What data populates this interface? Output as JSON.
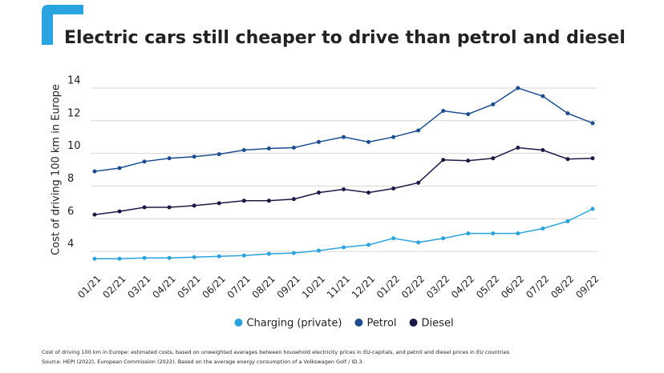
{
  "chart_data": {
    "type": "line",
    "title": "Electric cars still cheaper to drive than petrol and diesel",
    "y_label": "Cost of driving 100 km in Europe",
    "categories": [
      "01/21",
      "02/21",
      "03/21",
      "04/21",
      "05/21",
      "06/21",
      "07/21",
      "08/21",
      "09/21",
      "10/21",
      "11/21",
      "12/21",
      "01/22",
      "02/22",
      "03/22",
      "04/22",
      "05/22",
      "06/22",
      "07/22",
      "08/22",
      "09/22"
    ],
    "series": [
      {
        "name": "Charging (private)",
        "color": "#29a3dd",
        "values": [
          3.55,
          3.55,
          3.6,
          3.6,
          3.65,
          3.7,
          3.75,
          3.85,
          3.9,
          4.05,
          4.25,
          4.4,
          4.8,
          4.55,
          4.8,
          5.1,
          5.1,
          5.1,
          5.4,
          5.85,
          6.6
        ]
      },
      {
        "name": "Petrol",
        "color": "#1a4e91",
        "values": [
          8.9,
          9.1,
          9.5,
          9.7,
          9.8,
          9.95,
          10.2,
          10.3,
          10.35,
          10.7,
          11.0,
          10.7,
          11.0,
          11.4,
          12.6,
          12.4,
          13.0,
          14.0,
          13.5,
          12.45,
          11.85
        ]
      },
      {
        "name": "Diesel",
        "color": "#1b1a47",
        "values": [
          6.25,
          6.45,
          6.7,
          6.7,
          6.8,
          6.95,
          7.1,
          7.1,
          7.2,
          7.6,
          7.8,
          7.6,
          7.85,
          8.2,
          9.6,
          9.55,
          9.7,
          10.35,
          10.2,
          9.65,
          9.7
        ]
      }
    ],
    "ylim": [
      3,
      14.5
    ],
    "yticks": [
      4,
      6,
      8,
      10,
      12,
      14
    ],
    "grid": true,
    "legend": "bottom",
    "notes": [
      "Cost of driving 100 km in Europe: estimated costs, based on unweighted averages between household electricity prices in EU-capitals, and petrol and diesel prices in EU countries",
      "Source: HEPI (2022), European Commission (2022). Based on the average energy consumption of a Volkswagen Golf / ID.3."
    ]
  }
}
